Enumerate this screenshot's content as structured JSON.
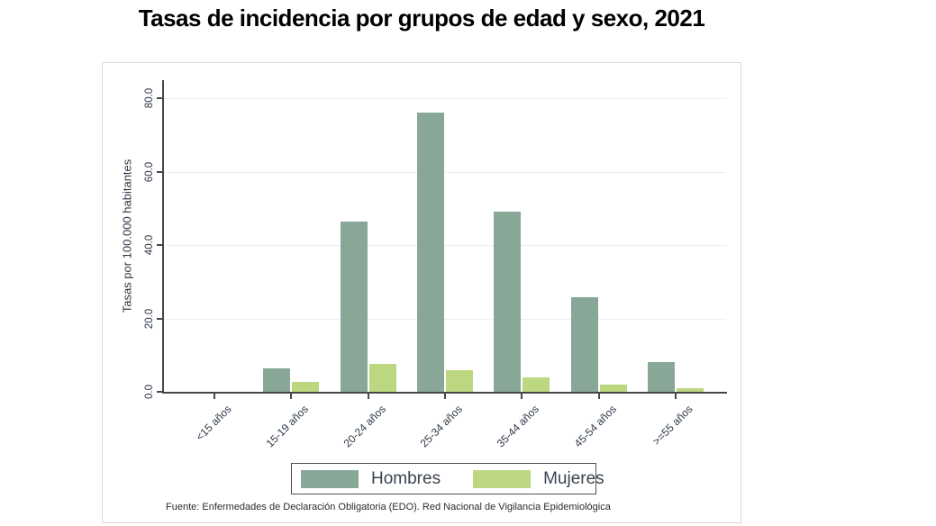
{
  "title": "Tasas de incidencia por grupos de edad y sexo, 2021",
  "source": "Fuente: Enfermedades de Declaración Obligatoria (EDO). Red Nacional de Vigilancia Epidemiológica",
  "chart_data": {
    "type": "bar",
    "title": "Tasas de incidencia por grupos de edad y sexo, 2021",
    "xlabel": "",
    "ylabel": "Tasas por 100.000 habitantes",
    "ylim": [
      0,
      80
    ],
    "y_ticks": [
      0,
      20,
      40,
      60,
      80
    ],
    "y_tick_labels": [
      "0.0",
      "20.0",
      "40.0",
      "60.0",
      "80.0"
    ],
    "grid": true,
    "legend_position": "bottom",
    "categories": [
      "<15 años",
      "15-19 años",
      "20-24 años",
      "25-34 años",
      "35-44 años",
      "45-54 años",
      ">=55 años"
    ],
    "series": [
      {
        "name": "Hombres",
        "color": "#88a797",
        "values": [
          0,
          6.3,
          46.5,
          76,
          49,
          25.8,
          8
        ]
      },
      {
        "name": "Mujeres",
        "color": "#bbd880",
        "values": [
          0,
          2.7,
          7.5,
          6,
          4,
          2,
          0.9
        ]
      }
    ]
  },
  "colors": {
    "hombres": "#88a797",
    "mujeres": "#bbd880",
    "gridline": "#e7eff3",
    "axis": "#474747",
    "tick_text": "#2e3947"
  }
}
